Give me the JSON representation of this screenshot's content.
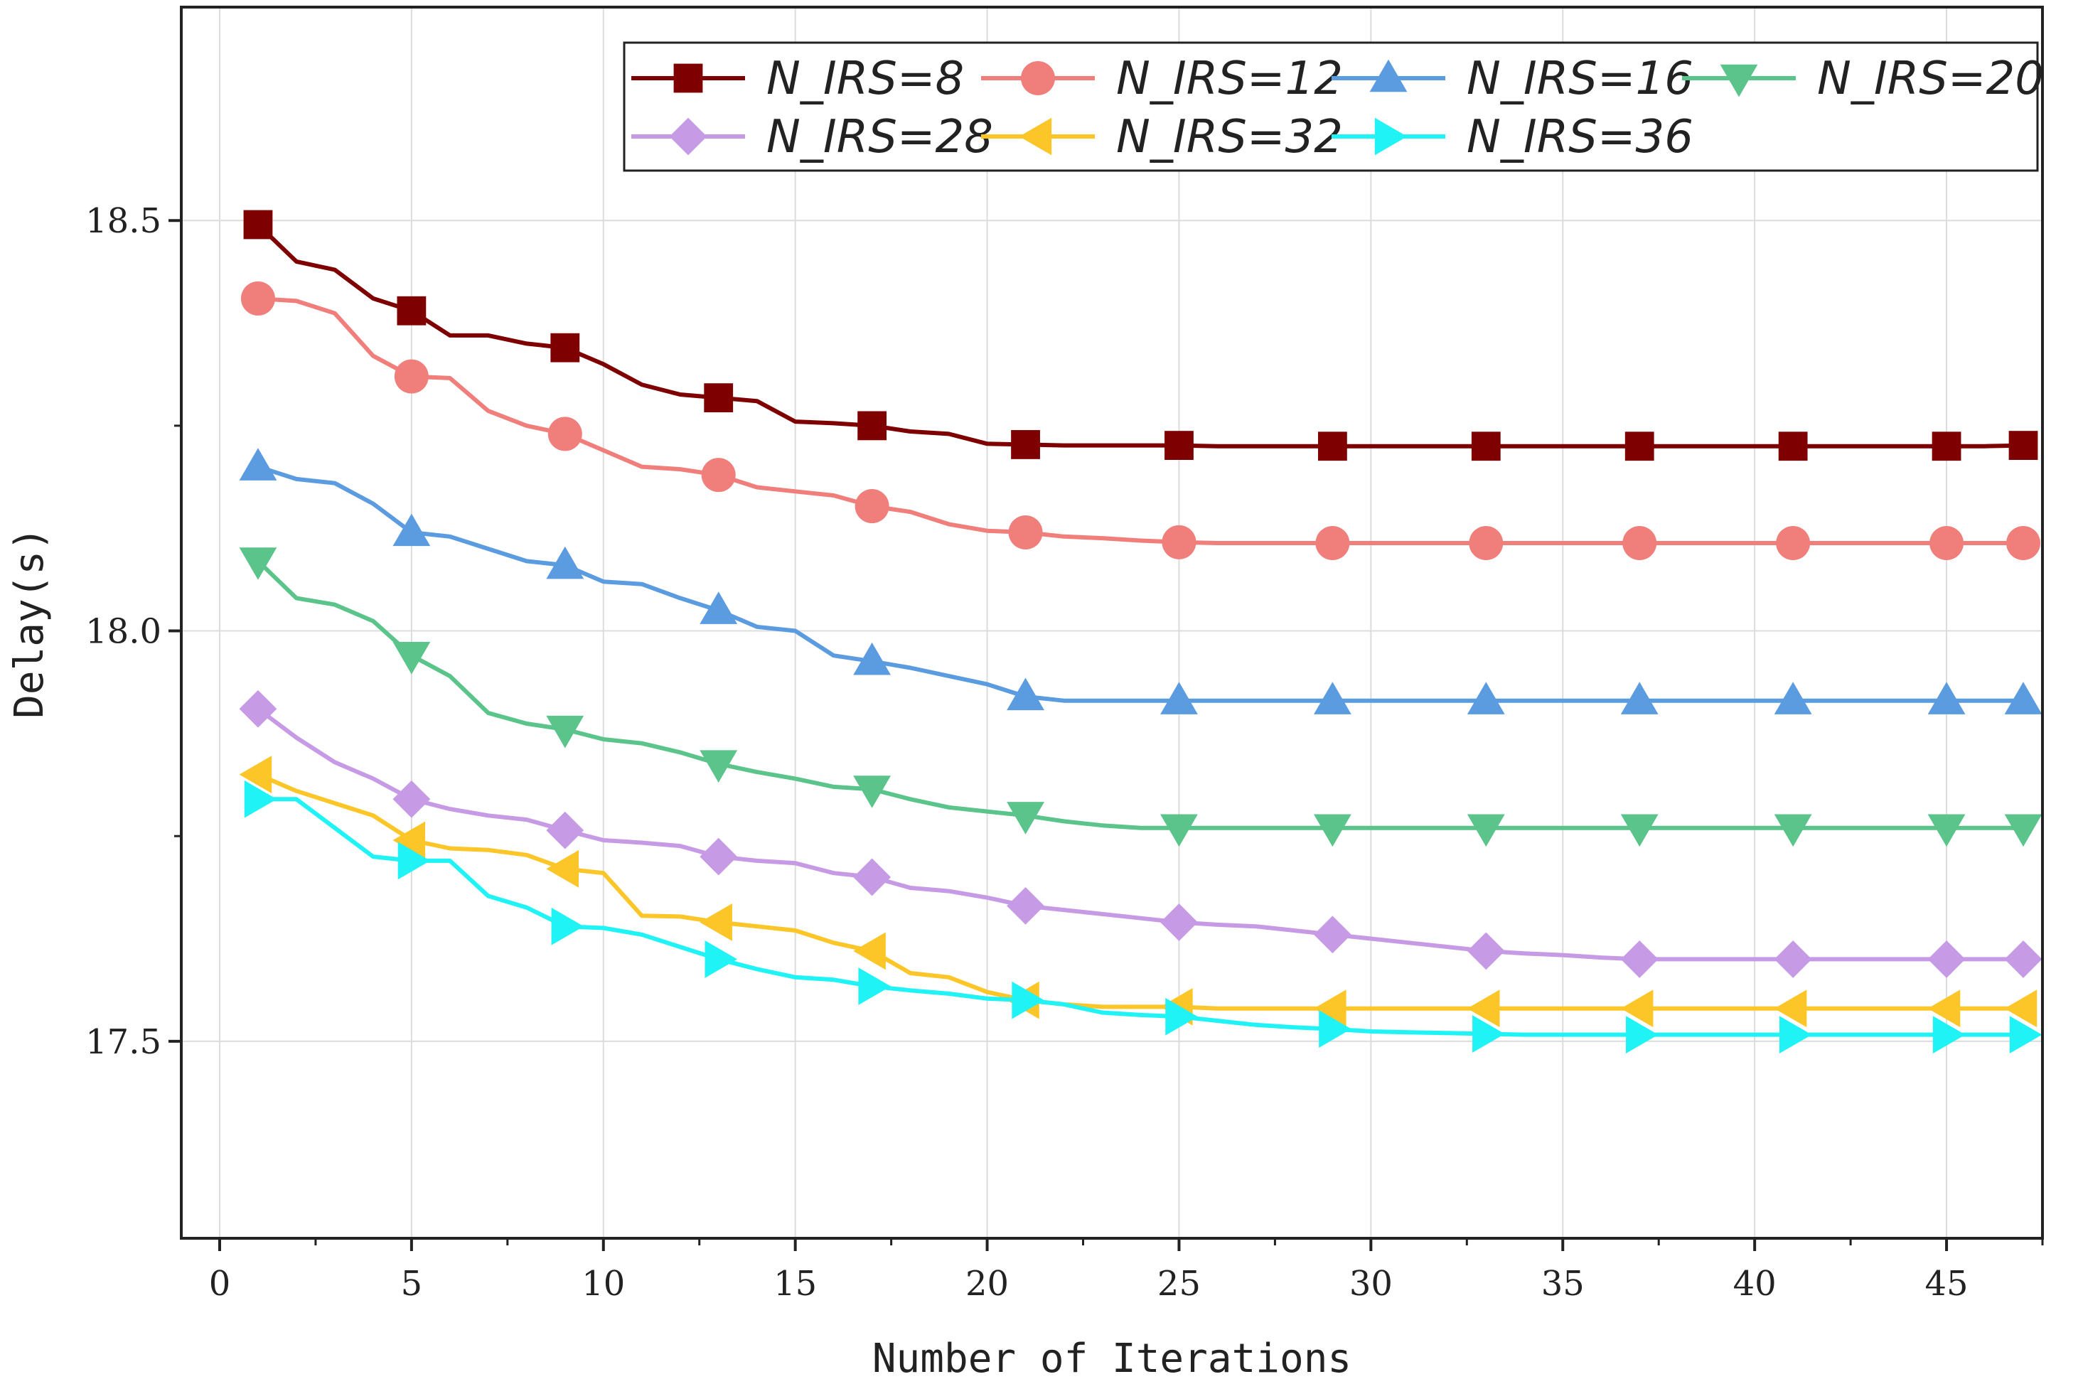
{
  "chart_data": {
    "type": "line",
    "title": "",
    "xlabel": "Number of Iterations",
    "ylabel": "Delay(s)",
    "xlim": [
      -1,
      47.5
    ],
    "ylim": [
      17.26,
      18.76
    ],
    "xticks": [
      0,
      5,
      10,
      15,
      20,
      25,
      30,
      35,
      40,
      45
    ],
    "xticks_minor": [
      2.5,
      7.5,
      12.5,
      17.5,
      22.5,
      27.5,
      32.5,
      37.5,
      42.5,
      47.5
    ],
    "xtick_labels": [
      "0",
      "5",
      "10",
      "15",
      "20",
      "25",
      "30",
      "35",
      "40",
      "45"
    ],
    "yticks": [
      17.5,
      18.0,
      18.5
    ],
    "ytick_labels": [
      "17.5",
      "18.0",
      "18.5"
    ],
    "yticks_minor": [
      17.75,
      18.25
    ],
    "grid": true,
    "legend_position": "top-right",
    "x": [
      1,
      2,
      3,
      4,
      5,
      6,
      7,
      8,
      9,
      10,
      11,
      12,
      13,
      14,
      15,
      16,
      17,
      18,
      19,
      20,
      21,
      22,
      23,
      24,
      25,
      26,
      27,
      28,
      29,
      30,
      31,
      32,
      33,
      34,
      35,
      36,
      37,
      38,
      39,
      40,
      41,
      42,
      43,
      44,
      45,
      46,
      47
    ],
    "series": [
      {
        "name": "N_IRS=8",
        "color": "#7f0000",
        "marker": "square",
        "values": [
          18.495,
          18.45,
          18.44,
          18.405,
          18.39,
          18.36,
          18.36,
          18.35,
          18.345,
          18.325,
          18.3,
          18.288,
          18.284,
          18.28,
          18.255,
          18.253,
          18.25,
          18.243,
          18.24,
          18.228,
          18.227,
          18.226,
          18.226,
          18.226,
          18.226,
          18.225,
          18.225,
          18.225,
          18.225,
          18.225,
          18.225,
          18.225,
          18.225,
          18.225,
          18.225,
          18.225,
          18.225,
          18.225,
          18.225,
          18.225,
          18.225,
          18.225,
          18.225,
          18.225,
          18.225,
          18.225,
          18.226
        ]
      },
      {
        "name": "N_IRS=12",
        "color": "#f07e7b",
        "marker": "circle",
        "values": [
          18.405,
          18.402,
          18.387,
          18.335,
          18.31,
          18.308,
          18.268,
          18.25,
          18.24,
          18.22,
          18.2,
          18.197,
          18.19,
          18.175,
          18.17,
          18.165,
          18.152,
          18.145,
          18.13,
          18.122,
          18.12,
          18.115,
          18.113,
          18.11,
          18.108,
          18.107,
          18.107,
          18.107,
          18.107,
          18.107,
          18.107,
          18.107,
          18.107,
          18.107,
          18.107,
          18.107,
          18.107,
          18.107,
          18.107,
          18.107,
          18.107,
          18.107,
          18.107,
          18.107,
          18.107,
          18.107,
          18.107
        ]
      },
      {
        "name": "N_IRS=16",
        "color": "#5b9be0",
        "marker": "triangle-up",
        "values": [
          18.2,
          18.185,
          18.18,
          18.155,
          18.12,
          18.115,
          18.1,
          18.085,
          18.08,
          18.06,
          18.057,
          18.04,
          18.025,
          18.005,
          18.0,
          17.97,
          17.963,
          17.955,
          17.945,
          17.935,
          17.92,
          17.915,
          17.915,
          17.915,
          17.915,
          17.915,
          17.915,
          17.915,
          17.915,
          17.915,
          17.915,
          17.915,
          17.915,
          17.915,
          17.915,
          17.915,
          17.915,
          17.915,
          17.915,
          17.915,
          17.915,
          17.915,
          17.915,
          17.915,
          17.915,
          17.915,
          17.915
        ]
      },
      {
        "name": "N_IRS=20",
        "color": "#5ac48a",
        "marker": "triangle-down",
        "values": [
          18.085,
          18.04,
          18.032,
          18.012,
          17.97,
          17.945,
          17.9,
          17.887,
          17.88,
          17.868,
          17.863,
          17.852,
          17.838,
          17.828,
          17.82,
          17.81,
          17.807,
          17.795,
          17.785,
          17.78,
          17.775,
          17.768,
          17.763,
          17.76,
          17.76,
          17.76,
          17.76,
          17.76,
          17.76,
          17.76,
          17.76,
          17.76,
          17.76,
          17.76,
          17.76,
          17.76,
          17.76,
          17.76,
          17.76,
          17.76,
          17.76,
          17.76,
          17.76,
          17.76,
          17.76,
          17.76,
          17.76
        ]
      },
      {
        "name": "N_IRS=28",
        "color": "#c79ae5",
        "marker": "diamond",
        "values": [
          17.905,
          17.87,
          17.84,
          17.82,
          17.795,
          17.783,
          17.775,
          17.77,
          17.757,
          17.745,
          17.742,
          17.738,
          17.725,
          17.72,
          17.717,
          17.705,
          17.7,
          17.687,
          17.683,
          17.675,
          17.665,
          17.66,
          17.655,
          17.65,
          17.645,
          17.642,
          17.64,
          17.635,
          17.63,
          17.625,
          17.62,
          17.615,
          17.61,
          17.607,
          17.605,
          17.602,
          17.6,
          17.6,
          17.6,
          17.6,
          17.6,
          17.6,
          17.6,
          17.6,
          17.6,
          17.6,
          17.6
        ]
      },
      {
        "name": "N_IRS=32",
        "color": "#fcc528",
        "marker": "triangle-left",
        "values": [
          17.825,
          17.805,
          17.79,
          17.775,
          17.745,
          17.735,
          17.733,
          17.727,
          17.71,
          17.705,
          17.653,
          17.652,
          17.645,
          17.64,
          17.635,
          17.62,
          17.61,
          17.583,
          17.578,
          17.56,
          17.55,
          17.545,
          17.542,
          17.542,
          17.542,
          17.54,
          17.54,
          17.54,
          17.54,
          17.54,
          17.54,
          17.54,
          17.54,
          17.54,
          17.54,
          17.54,
          17.54,
          17.54,
          17.54,
          17.54,
          17.54,
          17.54,
          17.54,
          17.54,
          17.54,
          17.54,
          17.54
        ]
      },
      {
        "name": "N_IRS=36",
        "color": "#1ff3f5",
        "marker": "triangle-right",
        "values": [
          17.795,
          17.795,
          17.76,
          17.725,
          17.72,
          17.72,
          17.677,
          17.663,
          17.64,
          17.638,
          17.63,
          17.615,
          17.6,
          17.588,
          17.578,
          17.575,
          17.567,
          17.562,
          17.558,
          17.552,
          17.55,
          17.545,
          17.535,
          17.532,
          17.53,
          17.525,
          17.52,
          17.517,
          17.515,
          17.512,
          17.511,
          17.51,
          17.509,
          17.508,
          17.508,
          17.508,
          17.508,
          17.508,
          17.508,
          17.508,
          17.508,
          17.508,
          17.508,
          17.508,
          17.508,
          17.508,
          17.508
        ]
      }
    ]
  }
}
